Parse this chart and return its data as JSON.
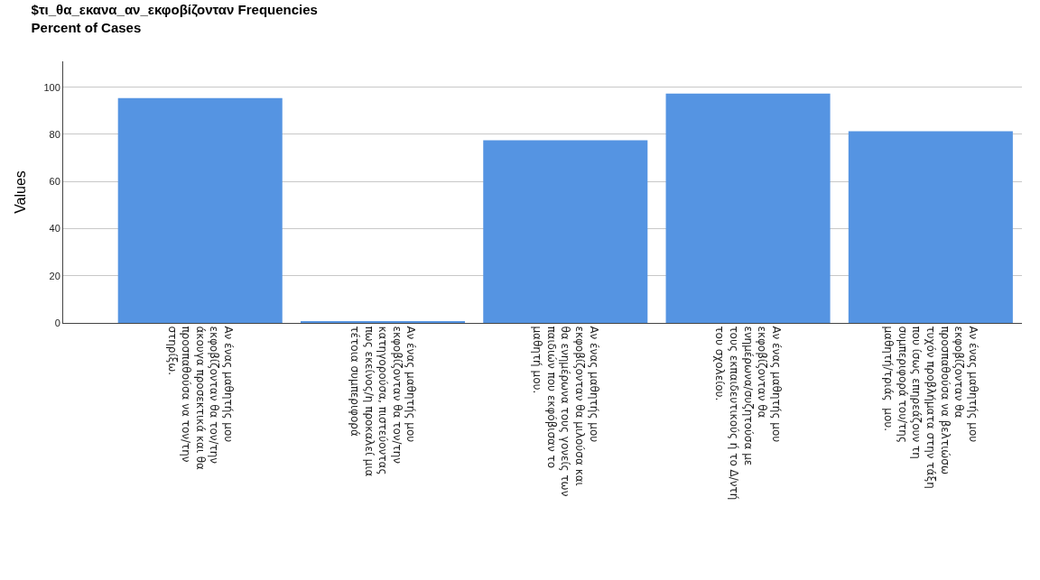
{
  "chart_data": {
    "type": "bar",
    "title": "$τι_θα_εκανα_αν_εκφοβίζονταν Frequencies\nPercent of Cases",
    "ylabel": "Values",
    "categories": [
      "Αν ένας μαθητής μου\nεκφοβίζονταν θα τον/την\nάκουγα προσεκτικά και θα\nπροσπαθούσα να τον/την\nστηρίξω.",
      "Αν ένας μαθητής μου\nεκφοβίζονταν θα τον/την\nκατηγορούσα, πιστεύοντας\nπως εκείνος/η προκαλεί μια\nτέτοια συμπεριφορά",
      "Αν ένας μαθητής μου\nεκφοβίζονταν θα μιλούσα και\nθα ενημέρωνα τους γονείς των\nπαιδιών που εκφόβισαν το\nμαθητή μου.",
      "Αν ένας μαθητής μου\nεκφοβίζονταν θα\nενημέρωνα/συζητούσα με\nτους εκπαιδευτικούς ή το Δ/ντή\nτου σχολείου.",
      "Αν ένας μαθητής μου\nεκφοβίζονταν θα\nπροσπαθούσα να βελτιώσω\nτυχόν προβλήματα στην τάξη\nπου ίσως επηρεάζουν τη\nσυμπεριφορά του/της\nμαθητή/τριάς  μου."
    ],
    "values": [
      95.4,
      0.5,
      77.5,
      97.3,
      81.3
    ],
    "color": "#5594e2",
    "ylim": [
      0,
      111
    ],
    "yticks": [
      0,
      20,
      40,
      60,
      80,
      100
    ],
    "grid": "y"
  }
}
